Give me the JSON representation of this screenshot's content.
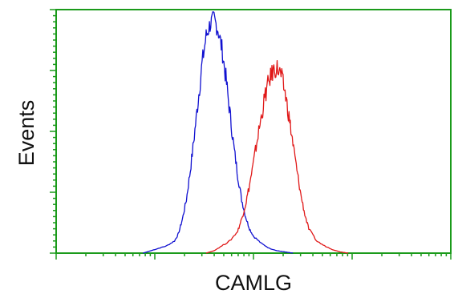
{
  "chart_data": {
    "type": "line",
    "title": "",
    "xlabel": "CAMLG",
    "ylabel": "Events",
    "xscale": "log",
    "xlim": [
      0,
      100
    ],
    "ylim": [
      0,
      100
    ],
    "grid": false,
    "legend": "none",
    "axis_color": "#1a9a1a",
    "series": [
      {
        "color": "#1010d0",
        "x": [
          22,
          24,
          26,
          28,
          30,
          31,
          32,
          33,
          34,
          35,
          36,
          37,
          38,
          39,
          40,
          41,
          42,
          43,
          44,
          45,
          46,
          47,
          48,
          49,
          50,
          52,
          54,
          56,
          58,
          60
        ],
        "y": [
          0,
          1,
          2,
          3,
          5,
          8,
          14,
          22,
          34,
          48,
          63,
          78,
          89,
          94,
          96,
          92,
          84,
          72,
          58,
          44,
          32,
          22,
          15,
          10,
          7,
          4,
          2,
          1,
          0.5,
          0
        ]
      },
      {
        "color": "#e01818",
        "x": [
          38,
          40,
          42,
          44,
          46,
          47,
          48,
          49,
          50,
          51,
          52,
          53,
          54,
          55,
          56,
          57,
          58,
          59,
          60,
          61,
          62,
          63,
          64,
          66,
          68,
          70,
          72,
          74
        ],
        "y": [
          0,
          1,
          3,
          5,
          9,
          14,
          20,
          28,
          37,
          47,
          56,
          65,
          71,
          75,
          76,
          73,
          66,
          56,
          45,
          34,
          24,
          16,
          10,
          5,
          3,
          1.5,
          0.5,
          0
        ]
      }
    ]
  }
}
